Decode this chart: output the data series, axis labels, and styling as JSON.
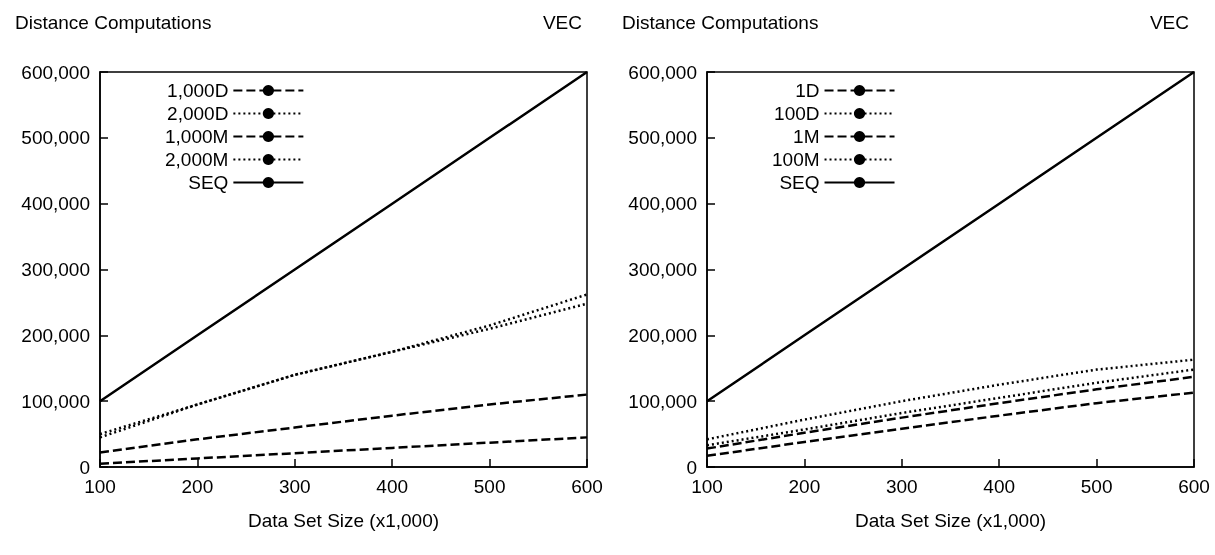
{
  "chart_data": [
    {
      "type": "line",
      "title": "VEC",
      "ylabel": "Distance Computations",
      "xlabel": "Data Set Size (x1,000)",
      "x": [
        100,
        200,
        300,
        400,
        500,
        600
      ],
      "xlim": [
        100,
        600
      ],
      "xticks": [
        100,
        200,
        300,
        400,
        500,
        600
      ],
      "ylim": [
        0,
        600000
      ],
      "yticks": [
        {
          "value": 0,
          "label": "0"
        },
        {
          "value": 100000,
          "label": "100,000"
        },
        {
          "value": 200000,
          "label": "200,000"
        },
        {
          "value": 300000,
          "label": "300,000"
        },
        {
          "value": 400000,
          "label": "400,000"
        },
        {
          "value": 500000,
          "label": "500,000"
        },
        {
          "value": 600000,
          "label": "600,000"
        }
      ],
      "grid": false,
      "legend": "top left",
      "marker": "none",
      "series": [
        {
          "name": "1,000D",
          "color": "#000000",
          "line_style": "dashed",
          "values": [
            5000,
            13000,
            21000,
            29000,
            37000,
            45000
          ]
        },
        {
          "name": "2,000D",
          "color": "#000000",
          "line_style": "dotted",
          "values": [
            45000,
            95000,
            140000,
            175000,
            215000,
            262000
          ]
        },
        {
          "name": "1,000M",
          "color": "#000000",
          "line_style": "dashed",
          "values": [
            22000,
            42000,
            60000,
            78000,
            95000,
            110000
          ]
        },
        {
          "name": "2,000M",
          "color": "#000000",
          "line_style": "dotted",
          "values": [
            50000,
            95000,
            140000,
            175000,
            210000,
            248000
          ]
        },
        {
          "name": "SEQ",
          "color": "#000000",
          "line_style": "solid",
          "values": [
            100000,
            200000,
            300000,
            400000,
            500000,
            600000
          ]
        }
      ]
    },
    {
      "type": "line",
      "title": "VEC",
      "ylabel": "Distance Computations",
      "xlabel": "Data Set Size (x1,000)",
      "x": [
        100,
        200,
        300,
        400,
        500,
        600
      ],
      "xlim": [
        100,
        600
      ],
      "xticks": [
        100,
        200,
        300,
        400,
        500,
        600
      ],
      "ylim": [
        0,
        600000
      ],
      "yticks": [
        {
          "value": 0,
          "label": "0"
        },
        {
          "value": 100000,
          "label": "100,000"
        },
        {
          "value": 200000,
          "label": "200,000"
        },
        {
          "value": 300000,
          "label": "300,000"
        },
        {
          "value": 400000,
          "label": "400,000"
        },
        {
          "value": 500000,
          "label": "500,000"
        },
        {
          "value": 600000,
          "label": "600,000"
        }
      ],
      "grid": false,
      "legend": "top left",
      "marker": "none",
      "series": [
        {
          "name": "1D",
          "color": "#000000",
          "line_style": "dashed",
          "values": [
            17000,
            38000,
            58000,
            78000,
            97000,
            113000
          ]
        },
        {
          "name": "100D",
          "color": "#000000",
          "line_style": "dotted",
          "values": [
            33000,
            57000,
            82000,
            105000,
            128000,
            148000
          ]
        },
        {
          "name": "1M",
          "color": "#000000",
          "line_style": "dashed",
          "values": [
            28000,
            52000,
            75000,
            97000,
            118000,
            137000
          ]
        },
        {
          "name": "100M",
          "color": "#000000",
          "line_style": "dotted",
          "values": [
            42000,
            72000,
            100000,
            125000,
            148000,
            163000
          ]
        },
        {
          "name": "SEQ",
          "color": "#000000",
          "line_style": "solid",
          "values": [
            100000,
            200000,
            300000,
            400000,
            500000,
            600000
          ]
        }
      ]
    }
  ]
}
